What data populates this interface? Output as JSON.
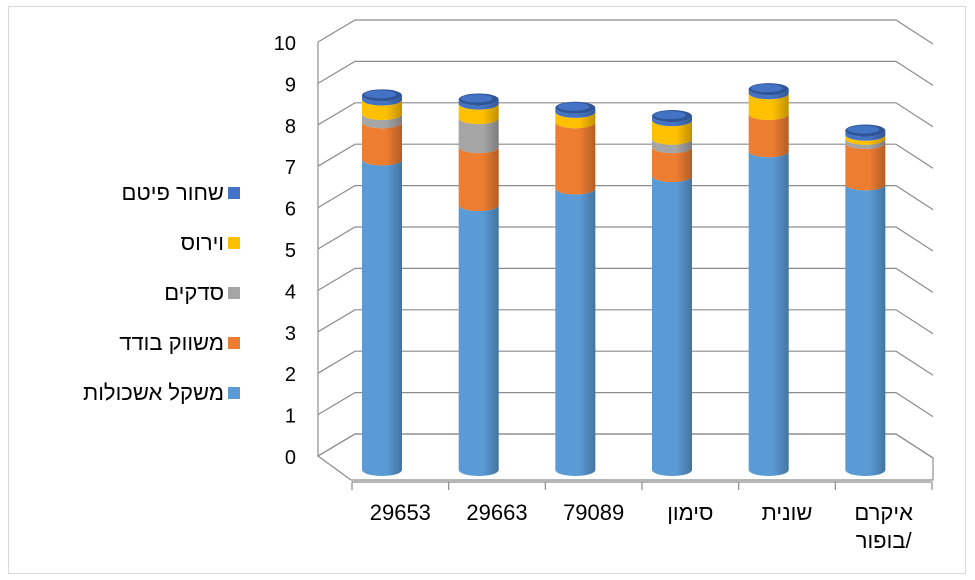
{
  "chart_data": {
    "type": "bar",
    "stacked": true,
    "style": "3d-cylinder",
    "categories": [
      "29653",
      "29663",
      "79089",
      "סימון",
      "שונית",
      "איקרם\n/בופור"
    ],
    "series": [
      {
        "name": "משקל אשכולות",
        "color": "#5B9BD5",
        "values": [
          7.5,
          6.4,
          6.8,
          7.1,
          7.7,
          6.9
        ]
      },
      {
        "name": "משווק בודד",
        "color": "#ED7D31",
        "values": [
          0.9,
          1.4,
          1.6,
          0.7,
          0.9,
          1.0
        ]
      },
      {
        "name": "סדקים",
        "color": "#A5A5A5",
        "values": [
          0.2,
          0.7,
          0.0,
          0.2,
          0.0,
          0.1
        ]
      },
      {
        "name": "וירוס",
        "color": "#FFC000",
        "values": [
          0.35,
          0.35,
          0.25,
          0.45,
          0.5,
          0.1
        ]
      },
      {
        "name": "שחור פיטם",
        "color": "#4472C4",
        "values": [
          0.1,
          0.1,
          0.1,
          0.1,
          0.1,
          0.1
        ]
      }
    ],
    "yticks": [
      "0",
      "1",
      "2",
      "3",
      "4",
      "5",
      "6",
      "7",
      "8",
      "9",
      "10"
    ],
    "ylim": [
      0,
      10
    ],
    "grid": true,
    "legend": "left"
  }
}
